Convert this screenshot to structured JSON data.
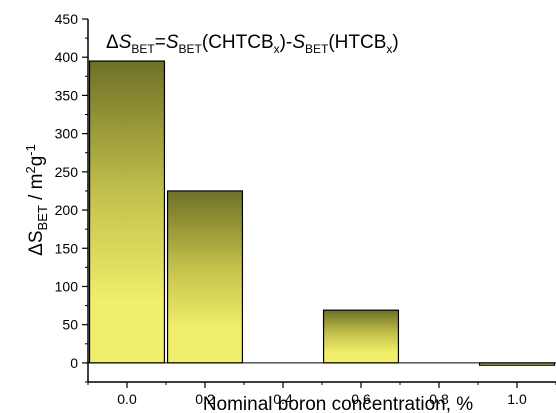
{
  "chart_data": {
    "type": "bar",
    "categories": [
      "0.0",
      "0.2",
      "0.4",
      "0.6",
      "0.8",
      "1.0"
    ],
    "bars": [
      {
        "x": 0.0,
        "value": 395
      },
      {
        "x": 0.2,
        "value": 225
      },
      {
        "x": 0.6,
        "value": 69
      },
      {
        "x": 1.0,
        "value": -3
      }
    ],
    "xlim": [
      -0.1,
      1.1
    ],
    "ylim": [
      -25,
      450
    ],
    "yticks": [
      "0",
      "50",
      "100",
      "150",
      "200",
      "250",
      "300",
      "350",
      "400",
      "450"
    ],
    "xlabel": "Nominal boron concentration, %",
    "ylabel": {
      "delta": "Δ",
      "s": "S",
      "sub": "BET",
      "slash": " / m",
      "sup2": "2",
      "g": "g",
      "supm1": "-1"
    },
    "annotation": {
      "delta": "Δ",
      "s1": "S",
      "sub1": "BET",
      "eq": "=",
      "s2": "S",
      "sub2": "BET",
      "open1": "(CHTCB",
      "subx1": "x",
      "mid": ")-",
      "s3": "S",
      "sub3": "BET",
      "open2": "(HTCB",
      "subx2": "x",
      "close": ")"
    },
    "bar_gradient": {
      "top": "#6e7126",
      "bottom": "#f0ee6a"
    },
    "grid": false
  }
}
